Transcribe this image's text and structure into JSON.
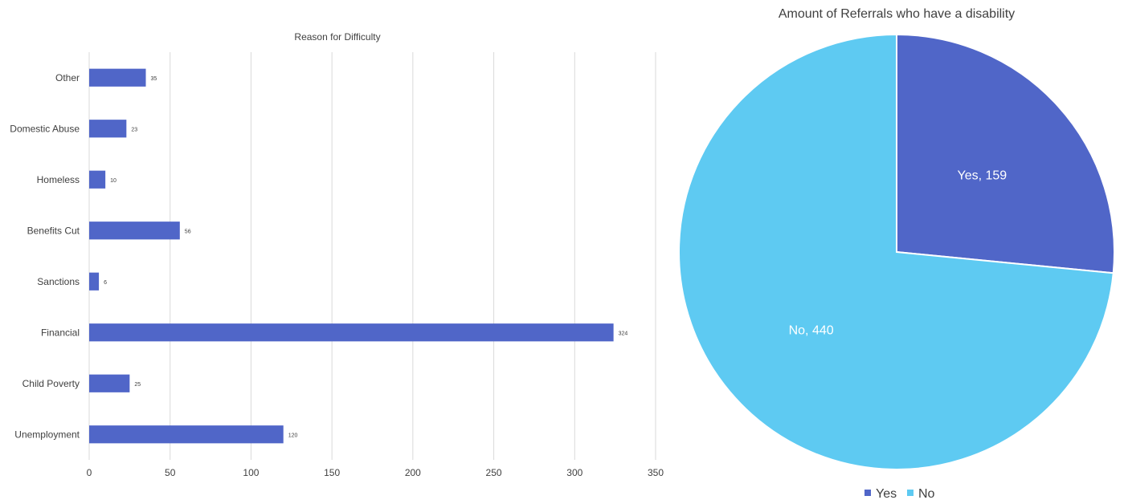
{
  "chart_data": [
    {
      "type": "bar",
      "orientation": "horizontal",
      "title": "Reason for Difficulty",
      "categories": [
        "Other",
        "Domestic Abuse",
        "Homeless",
        "Benefits Cut",
        "Sanctions",
        "Financial",
        "Child Poverty",
        "Unemployment"
      ],
      "values": [
        35,
        23,
        10,
        56,
        6,
        324,
        25,
        120
      ],
      "xlim": [
        0,
        350
      ],
      "xticks": [
        0,
        50,
        100,
        150,
        200,
        250,
        300,
        350
      ],
      "grid": true,
      "color": "#5066C8"
    },
    {
      "type": "pie",
      "title": "Amount of Referrals who have a disability",
      "slices": [
        {
          "label": "Yes",
          "value": 159,
          "data_label": "Yes, 159",
          "color": "#5066C8"
        },
        {
          "label": "No",
          "value": 440,
          "data_label": "No, 440",
          "color": "#5ECAF2"
        }
      ],
      "legend": {
        "position": "bottom",
        "items": [
          "Yes",
          "No"
        ]
      }
    }
  ]
}
